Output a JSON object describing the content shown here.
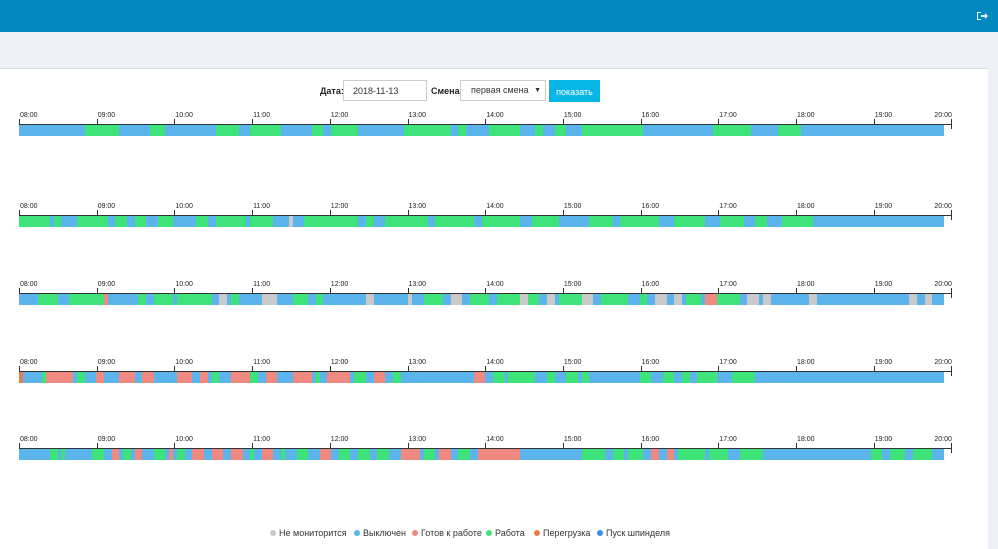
{
  "header": {
    "logout_icon": "logout-icon"
  },
  "form": {
    "date_label": "Дата:",
    "date_value": "2018-11-13",
    "shift_label": "Смена:",
    "shift_value": "первая смена",
    "show_button": "показать"
  },
  "colors": {
    "not_monitored": "#c9c9c9",
    "off": "#5bb5ec",
    "ready": "#f08a80",
    "work": "#3ee37a",
    "overload": "#ef7a4e",
    "spindle": "#3a8ee6"
  },
  "hours": [
    "08:00",
    "09:00",
    "10:00",
    "11:00",
    "12:00",
    "13:00",
    "14:00",
    "15:00",
    "16:00",
    "17:00",
    "18:00",
    "19:00",
    "20:00"
  ],
  "timelines": [
    {
      "segments": [
        {
          "s": 0.85,
          "e": 1.3,
          "t": "work"
        },
        {
          "s": 1.7,
          "e": 1.9,
          "t": "work"
        },
        {
          "s": 2.55,
          "e": 2.85,
          "t": "work"
        },
        {
          "s": 3.0,
          "e": 3.4,
          "t": "work"
        },
        {
          "s": 3.8,
          "e": 3.95,
          "t": "work"
        },
        {
          "s": 4.05,
          "e": 4.4,
          "t": "work"
        },
        {
          "s": 5.0,
          "e": 5.6,
          "t": "work"
        },
        {
          "s": 5.7,
          "e": 5.8,
          "t": "work"
        },
        {
          "s": 6.1,
          "e": 6.5,
          "t": "work"
        },
        {
          "s": 6.7,
          "e": 6.8,
          "t": "work"
        },
        {
          "s": 6.95,
          "e": 7.1,
          "t": "work"
        },
        {
          "s": 7.3,
          "e": 8.1,
          "t": "work"
        },
        {
          "s": 9.0,
          "e": 9.5,
          "t": "work"
        },
        {
          "s": 9.85,
          "e": 10.15,
          "t": "work"
        }
      ]
    },
    {
      "segments": [
        {
          "s": 0.0,
          "e": 0.4,
          "t": "work"
        },
        {
          "s": 0.45,
          "e": 0.55,
          "t": "work"
        },
        {
          "s": 0.75,
          "e": 1.15,
          "t": "work"
        },
        {
          "s": 1.25,
          "e": 1.4,
          "t": "work"
        },
        {
          "s": 1.5,
          "e": 1.65,
          "t": "work"
        },
        {
          "s": 1.8,
          "e": 2.0,
          "t": "work"
        },
        {
          "s": 2.3,
          "e": 2.45,
          "t": "work"
        },
        {
          "s": 2.55,
          "e": 2.95,
          "t": "work"
        },
        {
          "s": 3.0,
          "e": 3.3,
          "t": "work"
        },
        {
          "s": 3.5,
          "e": 3.55,
          "t": "not_monitored"
        },
        {
          "s": 3.7,
          "e": 4.4,
          "t": "work"
        },
        {
          "s": 4.5,
          "e": 4.6,
          "t": "work"
        },
        {
          "s": 4.75,
          "e": 5.3,
          "t": "work"
        },
        {
          "s": 5.4,
          "e": 5.9,
          "t": "work"
        },
        {
          "s": 6.0,
          "e": 6.5,
          "t": "work"
        },
        {
          "s": 6.65,
          "e": 7.0,
          "t": "work"
        },
        {
          "s": 7.4,
          "e": 7.7,
          "t": "work"
        },
        {
          "s": 7.8,
          "e": 8.3,
          "t": "work"
        },
        {
          "s": 8.5,
          "e": 8.9,
          "t": "work"
        },
        {
          "s": 9.1,
          "e": 9.4,
          "t": "work"
        },
        {
          "s": 9.55,
          "e": 9.7,
          "t": "work"
        },
        {
          "s": 9.9,
          "e": 10.3,
          "t": "work"
        }
      ]
    },
    {
      "segments": [
        {
          "s": 0.25,
          "e": 0.5,
          "t": "work"
        },
        {
          "s": 0.65,
          "e": 1.1,
          "t": "work"
        },
        {
          "s": 1.1,
          "e": 1.15,
          "t": "ready"
        },
        {
          "s": 1.55,
          "e": 1.65,
          "t": "work"
        },
        {
          "s": 1.75,
          "e": 2.0,
          "t": "work"
        },
        {
          "s": 2.05,
          "e": 2.5,
          "t": "work"
        },
        {
          "s": 2.6,
          "e": 2.7,
          "t": "not_monitored"
        },
        {
          "s": 2.75,
          "e": 2.85,
          "t": "work"
        },
        {
          "s": 3.15,
          "e": 3.35,
          "t": "not_monitored"
        },
        {
          "s": 3.55,
          "e": 3.75,
          "t": "work"
        },
        {
          "s": 3.85,
          "e": 3.95,
          "t": "work"
        },
        {
          "s": 4.5,
          "e": 4.6,
          "t": "not_monitored"
        },
        {
          "s": 5.05,
          "e": 5.1,
          "t": "not_monitored"
        },
        {
          "s": 5.25,
          "e": 5.5,
          "t": "work"
        },
        {
          "s": 5.6,
          "e": 5.75,
          "t": "not_monitored"
        },
        {
          "s": 5.85,
          "e": 6.1,
          "t": "work"
        },
        {
          "s": 6.2,
          "e": 6.5,
          "t": "work"
        },
        {
          "s": 6.5,
          "e": 6.6,
          "t": "not_monitored"
        },
        {
          "s": 6.6,
          "e": 6.75,
          "t": "work"
        },
        {
          "s": 6.85,
          "e": 6.95,
          "t": "not_monitored"
        },
        {
          "s": 7.0,
          "e": 7.3,
          "t": "work"
        },
        {
          "s": 7.3,
          "e": 7.45,
          "t": "not_monitored"
        },
        {
          "s": 7.55,
          "e": 7.9,
          "t": "work"
        },
        {
          "s": 8.05,
          "e": 8.15,
          "t": "work"
        },
        {
          "s": 8.25,
          "e": 8.4,
          "t": "not_monitored"
        },
        {
          "s": 8.5,
          "e": 8.6,
          "t": "not_monitored"
        },
        {
          "s": 8.65,
          "e": 8.85,
          "t": "work"
        },
        {
          "s": 8.9,
          "e": 9.05,
          "t": "ready"
        },
        {
          "s": 9.05,
          "e": 9.35,
          "t": "work"
        },
        {
          "s": 9.45,
          "e": 9.6,
          "t": "not_monitored"
        },
        {
          "s": 9.65,
          "e": 9.75,
          "t": "not_monitored"
        },
        {
          "s": 10.25,
          "e": 10.35,
          "t": "not_monitored"
        },
        {
          "s": 11.55,
          "e": 11.65,
          "t": "not_monitored"
        },
        {
          "s": 11.75,
          "e": 11.85,
          "t": "not_monitored"
        }
      ]
    },
    {
      "segments": [
        {
          "s": 0.0,
          "e": 0.05,
          "t": "overload"
        },
        {
          "s": 0.3,
          "e": 0.35,
          "t": "work"
        },
        {
          "s": 0.35,
          "e": 0.7,
          "t": "ready"
        },
        {
          "s": 0.75,
          "e": 0.85,
          "t": "work"
        },
        {
          "s": 1.0,
          "e": 1.1,
          "t": "ready"
        },
        {
          "s": 1.3,
          "e": 1.5,
          "t": "ready"
        },
        {
          "s": 1.6,
          "e": 1.75,
          "t": "ready"
        },
        {
          "s": 2.05,
          "e": 2.25,
          "t": "ready"
        },
        {
          "s": 2.35,
          "e": 2.45,
          "t": "ready"
        },
        {
          "s": 2.5,
          "e": 2.6,
          "t": "work"
        },
        {
          "s": 2.75,
          "e": 3.0,
          "t": "ready"
        },
        {
          "s": 3.0,
          "e": 3.1,
          "t": "work"
        },
        {
          "s": 3.2,
          "e": 3.35,
          "t": "ready"
        },
        {
          "s": 3.55,
          "e": 3.8,
          "t": "ready"
        },
        {
          "s": 3.85,
          "e": 3.9,
          "t": "work"
        },
        {
          "s": 4.0,
          "e": 4.3,
          "t": "ready"
        },
        {
          "s": 4.35,
          "e": 4.5,
          "t": "work"
        },
        {
          "s": 4.6,
          "e": 4.75,
          "t": "ready"
        },
        {
          "s": 4.85,
          "e": 4.95,
          "t": "work"
        },
        {
          "s": 5.9,
          "e": 6.05,
          "t": "ready"
        },
        {
          "s": 6.15,
          "e": 6.3,
          "t": "work"
        },
        {
          "s": 6.35,
          "e": 6.7,
          "t": "work"
        },
        {
          "s": 6.85,
          "e": 6.95,
          "t": "work"
        },
        {
          "s": 7.1,
          "e": 7.25,
          "t": "work"
        },
        {
          "s": 7.3,
          "e": 7.4,
          "t": "work"
        },
        {
          "s": 8.05,
          "e": 8.2,
          "t": "work"
        },
        {
          "s": 8.35,
          "e": 8.5,
          "t": "work"
        },
        {
          "s": 8.6,
          "e": 8.7,
          "t": "work"
        },
        {
          "s": 8.8,
          "e": 9.05,
          "t": "work"
        },
        {
          "s": 9.25,
          "e": 9.55,
          "t": "work"
        }
      ]
    },
    {
      "segments": [
        {
          "s": 0.4,
          "e": 0.5,
          "t": "work"
        },
        {
          "s": 0.55,
          "e": 0.6,
          "t": "work"
        },
        {
          "s": 0.95,
          "e": 1.1,
          "t": "work"
        },
        {
          "s": 1.2,
          "e": 1.3,
          "t": "ready"
        },
        {
          "s": 1.35,
          "e": 1.45,
          "t": "work"
        },
        {
          "s": 1.5,
          "e": 1.6,
          "t": "ready"
        },
        {
          "s": 1.75,
          "e": 1.9,
          "t": "work"
        },
        {
          "s": 1.95,
          "e": 2.0,
          "t": "ready"
        },
        {
          "s": 2.05,
          "e": 2.15,
          "t": "work"
        },
        {
          "s": 2.25,
          "e": 2.4,
          "t": "ready"
        },
        {
          "s": 2.5,
          "e": 2.65,
          "t": "ready"
        },
        {
          "s": 2.75,
          "e": 2.9,
          "t": "ready"
        },
        {
          "s": 3.0,
          "e": 3.05,
          "t": "work"
        },
        {
          "s": 3.15,
          "e": 3.3,
          "t": "ready"
        },
        {
          "s": 3.4,
          "e": 3.45,
          "t": "work"
        },
        {
          "s": 3.6,
          "e": 3.75,
          "t": "work"
        },
        {
          "s": 3.9,
          "e": 4.05,
          "t": "ready"
        },
        {
          "s": 4.15,
          "e": 4.3,
          "t": "work"
        },
        {
          "s": 4.4,
          "e": 4.55,
          "t": "work"
        },
        {
          "s": 4.65,
          "e": 4.8,
          "t": "work"
        },
        {
          "s": 4.95,
          "e": 5.2,
          "t": "ready"
        },
        {
          "s": 5.25,
          "e": 5.4,
          "t": "work"
        },
        {
          "s": 5.45,
          "e": 5.6,
          "t": "ready"
        },
        {
          "s": 5.7,
          "e": 5.85,
          "t": "work"
        },
        {
          "s": 5.95,
          "e": 6.2,
          "t": "ready"
        },
        {
          "s": 6.2,
          "e": 6.5,
          "t": "ready"
        },
        {
          "s": 7.3,
          "e": 7.6,
          "t": "work"
        },
        {
          "s": 7.7,
          "e": 7.85,
          "t": "work"
        },
        {
          "s": 7.9,
          "e": 8.1,
          "t": "work"
        },
        {
          "s": 8.2,
          "e": 8.3,
          "t": "ready"
        },
        {
          "s": 8.4,
          "e": 8.5,
          "t": "ready"
        },
        {
          "s": 8.55,
          "e": 8.9,
          "t": "work"
        },
        {
          "s": 8.95,
          "e": 9.2,
          "t": "work"
        },
        {
          "s": 9.35,
          "e": 9.65,
          "t": "work"
        },
        {
          "s": 11.05,
          "e": 11.2,
          "t": "work"
        },
        {
          "s": 11.3,
          "e": 11.5,
          "t": "work"
        },
        {
          "s": 11.6,
          "e": 11.85,
          "t": "work"
        }
      ]
    }
  ],
  "legend": [
    {
      "label": "Не мониторится",
      "key": "not_monitored"
    },
    {
      "label": "Выключен",
      "key": "off"
    },
    {
      "label": "Готов к работе",
      "key": "ready"
    },
    {
      "label": "Работа",
      "key": "work"
    },
    {
      "label": "Перегрузка",
      "key": "overload"
    },
    {
      "label": "Пуск шпинделя",
      "key": "spindle"
    }
  ]
}
